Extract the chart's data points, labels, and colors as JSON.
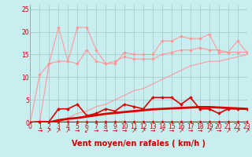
{
  "x": [
    0,
    1,
    2,
    3,
    4,
    5,
    6,
    7,
    8,
    9,
    10,
    11,
    12,
    13,
    14,
    15,
    16,
    17,
    18,
    19,
    20,
    21,
    22,
    23
  ],
  "series": [
    {
      "name": "max_gust_upper",
      "color": "#ff9999",
      "linewidth": 0.8,
      "marker": "D",
      "markersize": 2.0,
      "values": [
        0,
        10.5,
        13.0,
        21.0,
        13.5,
        21.0,
        21.0,
        16.0,
        13.0,
        13.0,
        15.5,
        15.0,
        15.0,
        15.0,
        18.0,
        18.0,
        19.0,
        18.5,
        18.5,
        19.5,
        15.5,
        15.5,
        18.0,
        15.5
      ]
    },
    {
      "name": "mean_gust",
      "color": "#ff9999",
      "linewidth": 0.8,
      "marker": "D",
      "markersize": 2.0,
      "values": [
        0,
        0,
        13.0,
        13.5,
        13.5,
        13.0,
        16.0,
        13.5,
        13.0,
        13.5,
        14.5,
        14.0,
        14.0,
        14.0,
        15.0,
        15.5,
        16.0,
        16.0,
        16.5,
        16.0,
        16.0,
        15.5,
        15.5,
        15.5
      ]
    },
    {
      "name": "lower_envelope",
      "color": "#ff9999",
      "linewidth": 0.8,
      "marker": null,
      "markersize": 0,
      "values": [
        0,
        0,
        0,
        0.0,
        1.0,
        2.0,
        2.5,
        3.5,
        4.0,
        5.0,
        6.0,
        7.0,
        7.5,
        8.5,
        9.5,
        10.5,
        11.5,
        12.5,
        13.0,
        13.5,
        13.5,
        14.0,
        14.5,
        15.0
      ]
    },
    {
      "name": "wind_speed_dark",
      "color": "#dd0000",
      "linewidth": 1.2,
      "marker": "D",
      "markersize": 2.0,
      "values": [
        0,
        0.2,
        0.2,
        3.0,
        3.0,
        4.0,
        1.5,
        2.0,
        3.0,
        2.5,
        4.0,
        3.5,
        3.0,
        5.5,
        5.5,
        5.5,
        4.0,
        5.5,
        3.0,
        3.0,
        2.0,
        3.0,
        3.0,
        3.0
      ]
    },
    {
      "name": "wind_base",
      "color": "#dd0000",
      "linewidth": 2.0,
      "marker": null,
      "markersize": 0,
      "values": [
        0,
        0,
        0,
        0.5,
        0.8,
        1.0,
        1.3,
        1.6,
        1.9,
        2.1,
        2.3,
        2.5,
        2.7,
        2.9,
        3.0,
        3.1,
        3.2,
        3.3,
        3.4,
        3.4,
        3.3,
        3.2,
        3.1,
        3.0
      ]
    },
    {
      "name": "near_zero_line",
      "color": "#dd0000",
      "linewidth": 0.8,
      "marker": "D",
      "markersize": 1.8,
      "values": [
        0,
        0.1,
        0.1,
        0.1,
        0.1,
        0.1,
        0.1,
        0.1,
        0.1,
        0.1,
        0.1,
        0.1,
        0.1,
        0.1,
        0.1,
        0.1,
        0.1,
        0.1,
        0.1,
        0.1,
        0.1,
        0.1,
        0.1,
        0.1
      ]
    }
  ],
  "wind_arrows_chars": [
    "→",
    "↗",
    "↗",
    "↗",
    "→",
    "↙",
    "→",
    "→",
    "→",
    "→",
    "↗",
    "↗",
    "→",
    "↗",
    "→",
    "↗",
    "→",
    "→",
    "↗",
    "→",
    "↗",
    "↗",
    "↗"
  ],
  "wind_arrows_x": [
    1,
    2,
    3,
    4,
    5,
    6,
    7,
    8,
    9,
    10,
    11,
    12,
    13,
    14,
    15,
    16,
    17,
    18,
    19,
    20,
    21,
    22,
    23
  ],
  "xlabel": "Vent moyen/en rafales ( km/h )",
  "xlim": [
    0,
    23
  ],
  "ylim": [
    0,
    26
  ],
  "yticks": [
    0,
    5,
    10,
    15,
    20,
    25
  ],
  "xticks": [
    0,
    1,
    2,
    3,
    4,
    5,
    6,
    7,
    8,
    9,
    10,
    11,
    12,
    13,
    14,
    15,
    16,
    17,
    18,
    19,
    20,
    21,
    22,
    23
  ],
  "background_color": "#c8eef0",
  "grid_color": "#a0c8cc",
  "tick_color": "#cc0000",
  "xlabel_color": "#cc0000",
  "xlabel_fontsize": 7,
  "tick_fontsize": 5.5,
  "arrow_fontsize": 5.5,
  "arrow_color": "#cc0000"
}
